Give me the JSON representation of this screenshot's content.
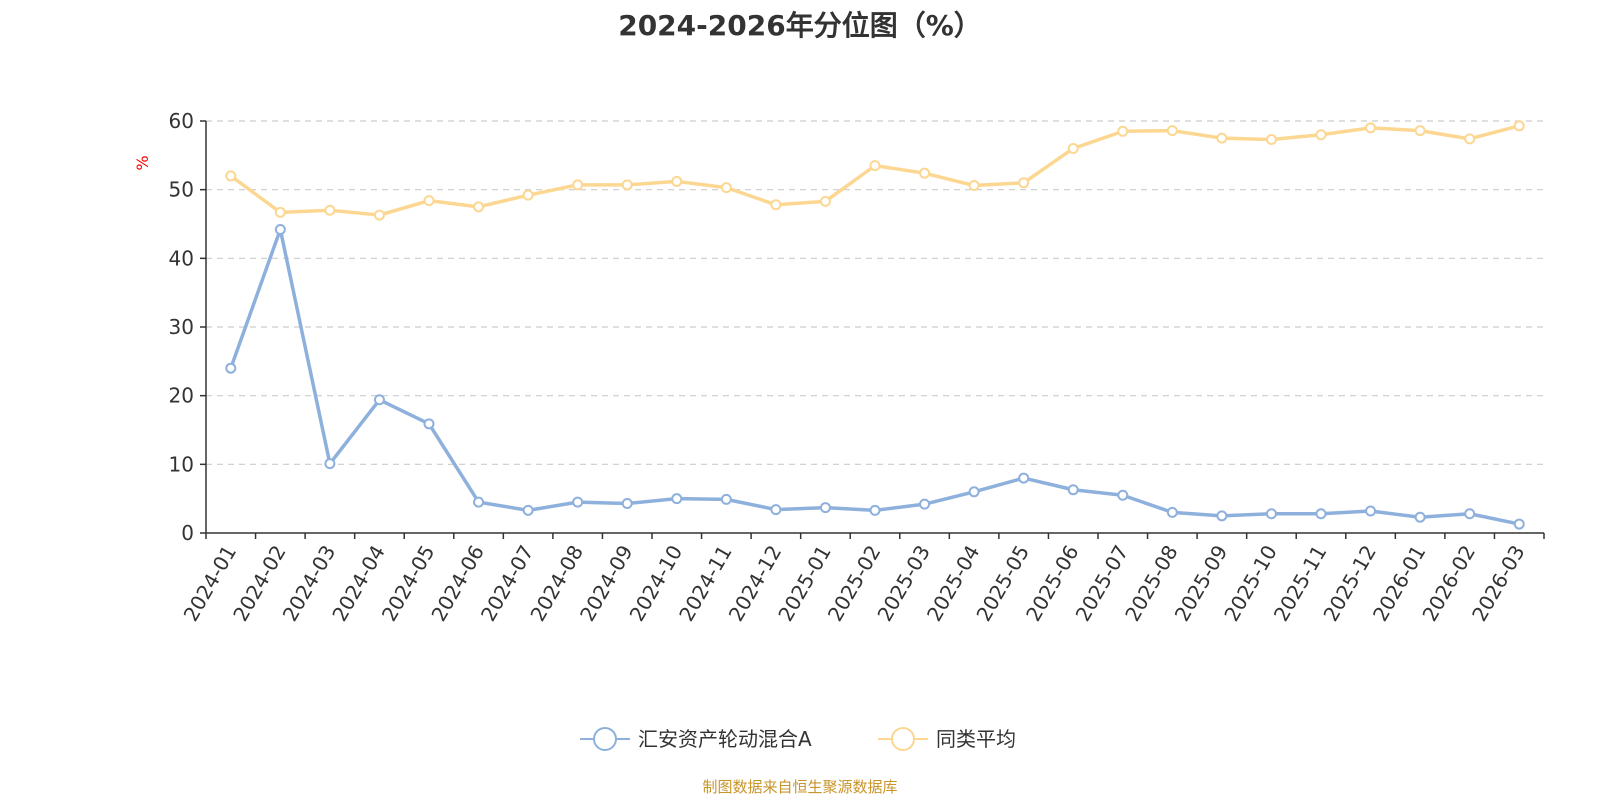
{
  "chart_data": {
    "type": "line",
    "title": "2024-2026年分位图（%）",
    "ylabel": "%",
    "xlabel": "",
    "ylim": [
      0,
      60
    ],
    "yticks": [
      0,
      10,
      20,
      30,
      40,
      50,
      60
    ],
    "grid": true,
    "legend_position": "bottom",
    "categories": [
      "2024-01",
      "2024-02",
      "2024-03",
      "2024-04",
      "2024-05",
      "2024-06",
      "2024-07",
      "2024-08",
      "2024-09",
      "2024-10",
      "2024-11",
      "2024-12",
      "2025-01",
      "2025-02",
      "2025-03",
      "2025-04",
      "2025-05",
      "2025-06",
      "2025-07",
      "2025-08",
      "2025-09",
      "2025-10",
      "2025-11",
      "2025-12",
      "2026-01",
      "2026-02",
      "2026-03"
    ],
    "series": [
      {
        "name": "汇安资产轮动混合A",
        "color": "#8eb0dc",
        "values": [
          24.0,
          44.2,
          10.1,
          19.4,
          15.9,
          4.5,
          3.3,
          4.5,
          4.3,
          5.0,
          4.9,
          3.4,
          3.7,
          3.3,
          4.2,
          6.0,
          8.0,
          6.3,
          5.5,
          3.0,
          2.5,
          2.8,
          2.8,
          3.2,
          2.3,
          2.8,
          1.3
        ]
      },
      {
        "name": "同类平均",
        "color": "#fcd792",
        "values": [
          52.0,
          46.7,
          47.0,
          46.3,
          48.4,
          47.5,
          49.2,
          50.7,
          50.7,
          51.2,
          50.3,
          47.8,
          48.3,
          53.5,
          52.4,
          50.6,
          51.0,
          56.0,
          58.5,
          58.6,
          57.5,
          57.3,
          58.0,
          59.0,
          58.6,
          57.4,
          59.3
        ]
      }
    ]
  },
  "source": {
    "text": "制图数据来自恒生聚源数据库",
    "color": "#c8952a"
  },
  "colors": {
    "axis": "#333333",
    "grid": "#cccccc",
    "ylabel": "#ff0000"
  }
}
